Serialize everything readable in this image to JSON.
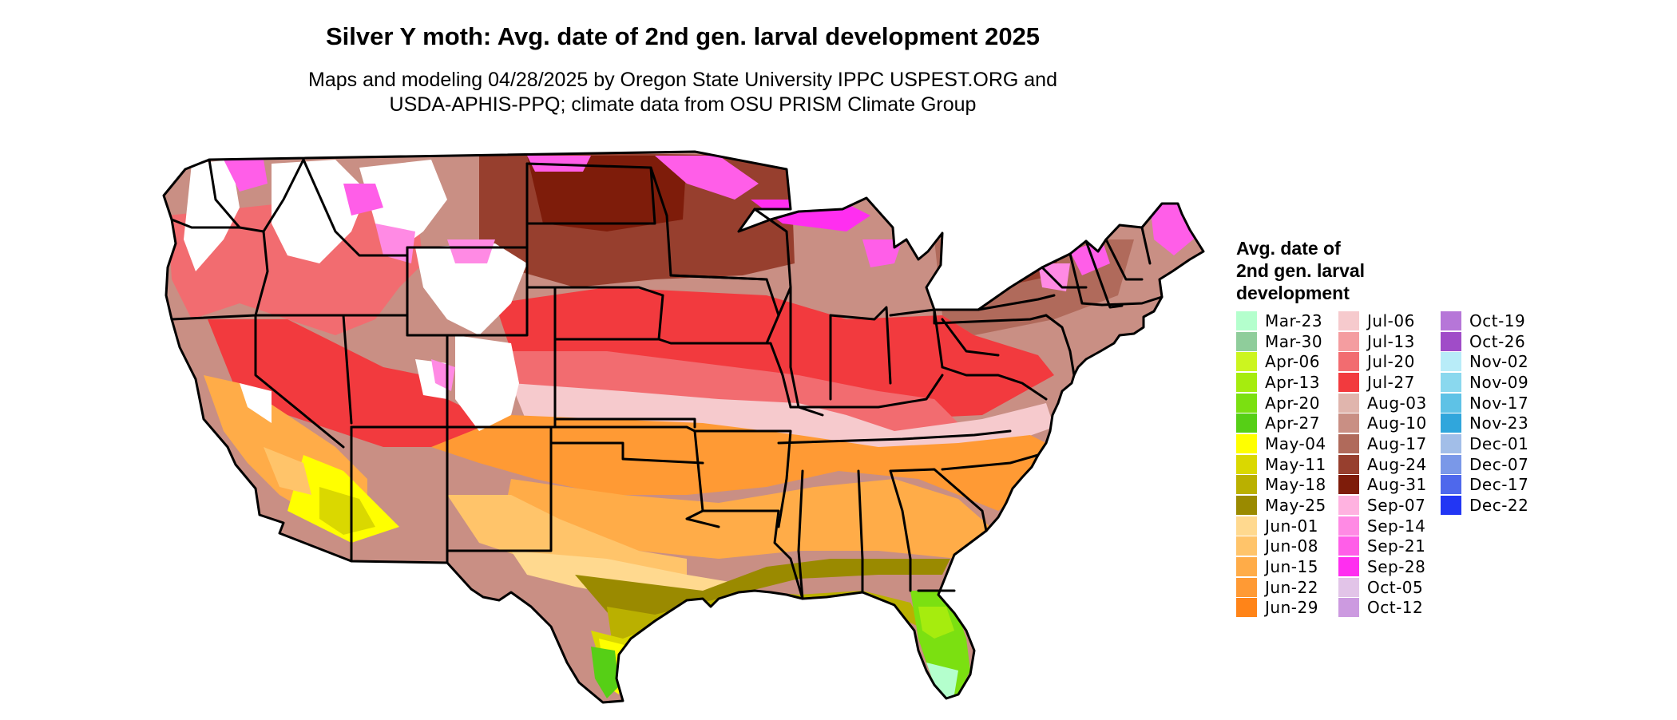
{
  "map": {
    "title": "Silver Y moth: Avg. date of 2nd gen. larval development 2025",
    "subtitle_line1": "Maps and modeling 04/28/2025 by Oregon State University IPPC USPEST.ORG and",
    "subtitle_line2": "USDA-APHIS-PPQ; climate data from OSU PRISM Climate Group",
    "legend": {
      "title_lines": [
        "Avg. date of",
        "2nd gen. larval",
        "development"
      ],
      "columns": [
        [
          {
            "label": "Mar-23",
            "color": "#b4ffcd"
          },
          {
            "label": "Mar-30",
            "color": "#8fcd9b"
          },
          {
            "label": "Apr-06",
            "color": "#ccf51f"
          },
          {
            "label": "Apr-13",
            "color": "#a6ec0e"
          },
          {
            "label": "Apr-20",
            "color": "#7be011"
          },
          {
            "label": "Apr-27",
            "color": "#56cf16"
          },
          {
            "label": "May-04",
            "color": "#ffff00"
          },
          {
            "label": "May-11",
            "color": "#dad800"
          },
          {
            "label": "May-18",
            "color": "#bab000"
          },
          {
            "label": "May-25",
            "color": "#9a8a00"
          },
          {
            "label": "Jun-01",
            "color": "#ffd98f"
          },
          {
            "label": "Jun-08",
            "color": "#ffc46a"
          },
          {
            "label": "Jun-15",
            "color": "#ffac48"
          },
          {
            "label": "Jun-22",
            "color": "#ff9a34"
          },
          {
            "label": "Jun-29",
            "color": "#ff8418"
          }
        ],
        [
          {
            "label": "Jul-06",
            "color": "#f6cacd"
          },
          {
            "label": "Jul-13",
            "color": "#f49da0"
          },
          {
            "label": "Jul-20",
            "color": "#f26c70"
          },
          {
            "label": "Jul-27",
            "color": "#f23a3e"
          },
          {
            "label": "Aug-03",
            "color": "#e0b5ad"
          },
          {
            "label": "Aug-10",
            "color": "#c98f84"
          },
          {
            "label": "Aug-17",
            "color": "#b06a5b"
          },
          {
            "label": "Aug-24",
            "color": "#973f2e"
          },
          {
            "label": "Aug-31",
            "color": "#7e1c0a"
          },
          {
            "label": "Sep-07",
            "color": "#ffb2e0"
          },
          {
            "label": "Sep-14",
            "color": "#ff8ae4"
          },
          {
            "label": "Sep-21",
            "color": "#ff5ee8"
          },
          {
            "label": "Sep-28",
            "color": "#ff2ef0"
          },
          {
            "label": "Oct-05",
            "color": "#e2c4e8"
          },
          {
            "label": "Oct-12",
            "color": "#cc9ae0"
          }
        ],
        [
          {
            "label": "Oct-19",
            "color": "#b676d8"
          },
          {
            "label": "Oct-26",
            "color": "#a04cc8"
          },
          {
            "label": "Nov-02",
            "color": "#b8ecf8"
          },
          {
            "label": "Nov-09",
            "color": "#8ad8ee"
          },
          {
            "label": "Nov-17",
            "color": "#5ec2e6"
          },
          {
            "label": "Nov-23",
            "color": "#30a6dc"
          },
          {
            "label": "Dec-01",
            "color": "#a2bee8"
          },
          {
            "label": "Dec-07",
            "color": "#7a98e8"
          },
          {
            "label": "Dec-17",
            "color": "#4e68ec"
          },
          {
            "label": "Dec-22",
            "color": "#2236f4"
          }
        ]
      ]
    }
  }
}
